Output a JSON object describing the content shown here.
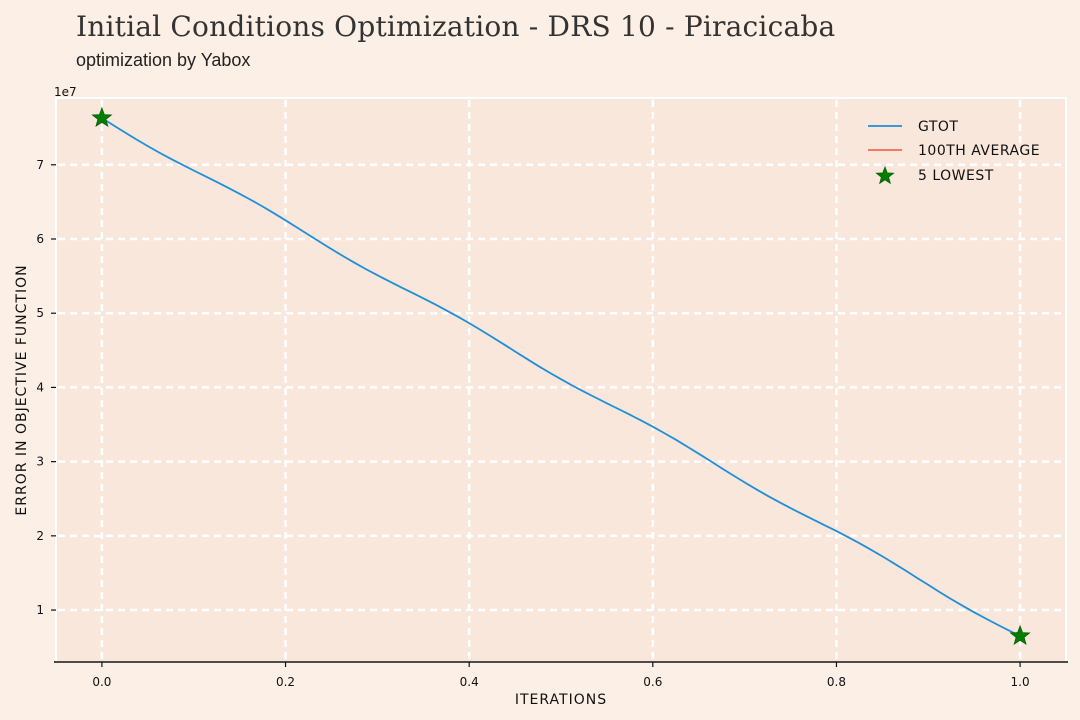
{
  "colors": {
    "page_background": "#fcf0e6",
    "plot_background": "#f9e7dc",
    "grid": "#ffffff",
    "series_gtot": "#1f8fd8",
    "series_average": "#f26b4f",
    "marker_lowest": "#008000"
  },
  "chart_data": {
    "type": "line",
    "title": "Initial Conditions Optimization - DRS 10 - Piracicaba",
    "subtitle": "optimization by Yabox",
    "xlabel": "ITERATIONS",
    "ylabel": "ERROR IN OBJECTIVE FUNCTION",
    "y_scale_label": "1e7",
    "xlim": [
      -0.05,
      1.05
    ],
    "ylim": [
      0.3,
      7.9
    ],
    "x_ticks": [
      0.0,
      0.2,
      0.4,
      0.6,
      0.8,
      1.0
    ],
    "x_tick_labels": [
      "0.0",
      "0.2",
      "0.4",
      "0.6",
      "0.8",
      "1.0"
    ],
    "y_ticks": [
      1,
      2,
      3,
      4,
      5,
      6,
      7
    ],
    "y_tick_labels": [
      "1",
      "2",
      "3",
      "4",
      "5",
      "6",
      "7"
    ],
    "grid": true,
    "legend_position": "top-right",
    "series": [
      {
        "name": "GTOT",
        "type": "line",
        "color": "#1f8fd8",
        "x": [
          0.0,
          1.0
        ],
        "y": [
          7.63,
          0.65
        ]
      },
      {
        "name": "100TH AVERAGE",
        "type": "line",
        "color": "#f26b4f",
        "x": [],
        "y": []
      },
      {
        "name": "5 LOWEST",
        "type": "scatter",
        "marker": "star",
        "color": "#008000",
        "x": [
          0.0,
          1.0
        ],
        "y": [
          7.63,
          0.65
        ]
      }
    ]
  }
}
